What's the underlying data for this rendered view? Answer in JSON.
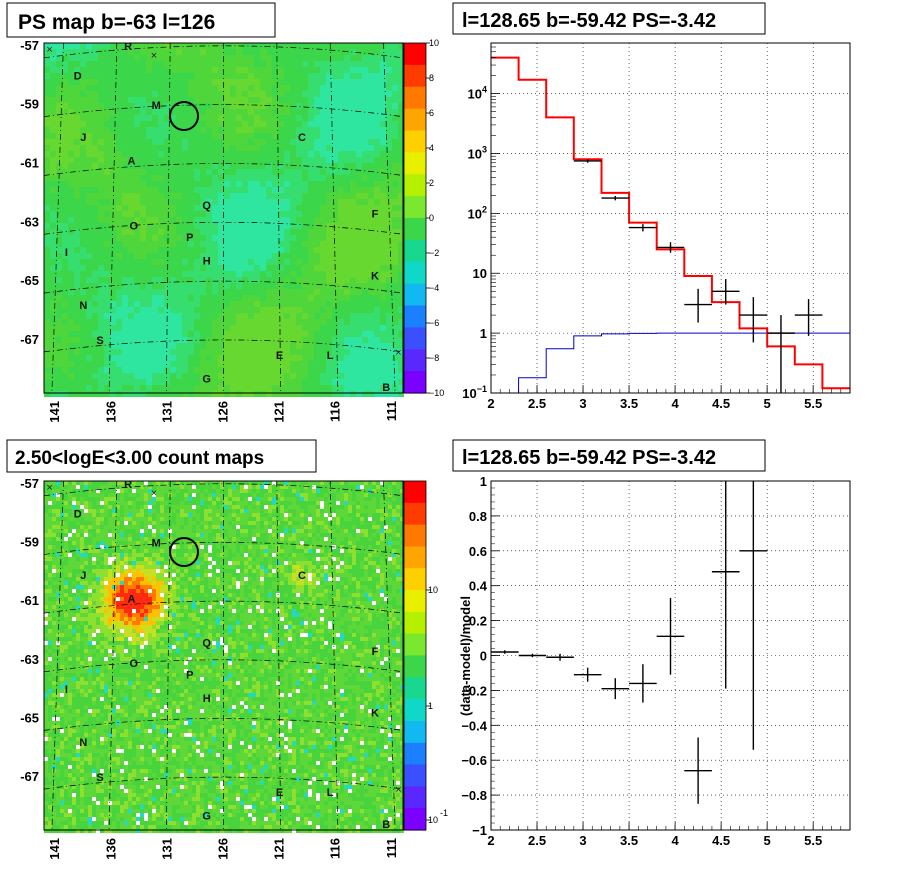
{
  "colors": {
    "map_green": "#3cd64a",
    "model_red": "#ff0000",
    "background_blue": "#0000cc",
    "frame": "#000000"
  },
  "panels": {
    "ps_map": {
      "title": "PS map b=-63 l=126",
      "b_ticks": [
        "-57",
        "-59",
        "-61",
        "-63",
        "-65",
        "-67"
      ],
      "l_ticks": [
        "141",
        "136",
        "131",
        "126",
        "121",
        "116",
        "111"
      ],
      "colorbar_ticks": [
        "10",
        "8",
        "6",
        "4",
        "2",
        "0",
        "−2",
        "−4",
        "−6",
        "−8",
        "−10"
      ],
      "colorbar_range": [
        -10,
        10
      ],
      "marker_circle": {
        "l": 128.65,
        "b": -59.42
      }
    },
    "spectrum": {
      "title": "l=128.65 b=-59.42 PS=-3.42"
    },
    "count_map": {
      "title": "2.50<logE<3.00 count maps",
      "b_ticks": [
        "-57",
        "-59",
        "-61",
        "-63",
        "-65",
        "-67"
      ],
      "l_ticks": [
        "141",
        "136",
        "131",
        "126",
        "121",
        "116",
        "111"
      ],
      "colorbar_ticks": [
        "10",
        "1",
        "10"
      ],
      "colorbar_exp": "-1"
    },
    "residual": {
      "title": "l=128.65 b=-59.42 PS=-3.42"
    }
  },
  "sources": [
    {
      "name": "R",
      "l": 134.5,
      "b": -56.8
    },
    {
      "name": "D",
      "l": 139.0,
      "b": -57.8
    },
    {
      "name": "M",
      "l": 132.0,
      "b": -58.8
    },
    {
      "name": "J",
      "l": 138.5,
      "b": -59.9
    },
    {
      "name": "C",
      "l": 119.0,
      "b": -59.9
    },
    {
      "name": "A",
      "l": 134.2,
      "b": -60.7
    },
    {
      "name": "Q",
      "l": 127.5,
      "b": -62.2
    },
    {
      "name": "F",
      "l": 112.5,
      "b": -62.5
    },
    {
      "name": "O",
      "l": 134.0,
      "b": -62.9
    },
    {
      "name": "P",
      "l": 129.0,
      "b": -63.3
    },
    {
      "name": "I",
      "l": 140.0,
      "b": -63.8
    },
    {
      "name": "H",
      "l": 127.5,
      "b": -64.1
    },
    {
      "name": "K",
      "l": 112.5,
      "b": -64.6
    },
    {
      "name": "N",
      "l": 138.5,
      "b": -65.6
    },
    {
      "name": "S",
      "l": 137.0,
      "b": -66.8
    },
    {
      "name": "E",
      "l": 121.0,
      "b": -67.3
    },
    {
      "name": "L",
      "l": 116.5,
      "b": -67.3
    },
    {
      "name": "G",
      "l": 127.5,
      "b": -68.1
    },
    {
      "name": "B",
      "l": 111.5,
      "b": -68.4
    }
  ],
  "chart_data": [
    {
      "type": "map",
      "xlim": [
        142,
        110
      ],
      "ylim": [
        -68.6,
        -56.7
      ],
      "colorbar": {
        "range": [
          -10,
          10
        ]
      }
    },
    {
      "type": "line",
      "xlim": [
        2,
        5.9
      ],
      "yscale": "log",
      "ylim": [
        0.1,
        70000
      ],
      "x_ticks": [
        "2",
        "2.5",
        "3",
        "3.5",
        "4",
        "4.5",
        "5",
        "5.5"
      ],
      "y_ticks": [
        "10^-1",
        "1",
        "10",
        "10^2",
        "10^3",
        "10^4"
      ],
      "grid": true,
      "series": [
        {
          "style": "step",
          "color": "#ff0000",
          "bin_edges": [
            2.0,
            2.3,
            2.6,
            2.9,
            3.2,
            3.5,
            3.8,
            4.1,
            4.4,
            4.7,
            5.0,
            5.3,
            5.6,
            5.9
          ],
          "values": [
            40000,
            17000,
            4000,
            800,
            220,
            70,
            25,
            9,
            3.3,
            1.2,
            0.6,
            0.3,
            0.12
          ]
        },
        {
          "style": "step",
          "color": "#0000cc",
          "bin_edges": [
            2.0,
            2.3,
            2.6,
            2.9,
            3.2,
            3.5,
            3.8,
            4.1,
            4.4,
            4.7,
            5.0,
            5.3,
            5.6,
            5.9
          ],
          "values": [
            0.05,
            0.18,
            0.55,
            0.9,
            0.97,
            0.99,
            1.0,
            1.0,
            1.0,
            1.0,
            1.0,
            1.0,
            1.0
          ]
        },
        {
          "style": "errorbar",
          "color": "#000000",
          "points": [
            {
              "x": 3.05,
              "y": 750,
              "xerr": 0.15,
              "lo": 700,
              "hi": 800
            },
            {
              "x": 3.35,
              "y": 180,
              "xerr": 0.15,
              "lo": 165,
              "hi": 195
            },
            {
              "x": 3.65,
              "y": 58,
              "xerr": 0.15,
              "lo": 50,
              "hi": 66
            },
            {
              "x": 3.95,
              "y": 27,
              "xerr": 0.15,
              "lo": 22,
              "hi": 33
            },
            {
              "x": 4.25,
              "y": 3,
              "xerr": 0.15,
              "lo": 1.5,
              "hi": 5.5
            },
            {
              "x": 4.55,
              "y": 5,
              "xerr": 0.15,
              "lo": 3,
              "hi": 8
            },
            {
              "x": 4.85,
              "y": 2,
              "xerr": 0.15,
              "lo": 0.7,
              "hi": 4
            },
            {
              "x": 5.15,
              "y": 1,
              "xerr": 0.15,
              "lo": 0.1,
              "hi": 2
            },
            {
              "x": 5.45,
              "y": 2,
              "xerr": 0.15,
              "lo": 0.9,
              "hi": 3.7
            }
          ]
        }
      ]
    },
    {
      "type": "heatmap",
      "xlim": [
        142,
        110
      ],
      "ylim": [
        -68.6,
        -56.7
      ],
      "colorbar": {
        "scale": "log",
        "range": [
          0.07,
          60
        ]
      }
    },
    {
      "type": "scatter",
      "xlim": [
        2,
        5.9
      ],
      "ylim": [
        -1,
        1
      ],
      "ylabel": "(data-model)/model",
      "x_ticks": [
        "2",
        "2.5",
        "3",
        "3.5",
        "4",
        "4.5",
        "5",
        "5.5"
      ],
      "y_ticks": [
        "−1",
        "−0.8",
        "−0.6",
        "−0.4",
        "−0.2",
        "0",
        "0.2",
        "0.4",
        "0.6",
        "0.8",
        "1"
      ],
      "grid": true,
      "points": [
        {
          "x": 2.15,
          "y": 0.02,
          "xerr": 0.15,
          "yerr": 0.01
        },
        {
          "x": 2.45,
          "y": 0.0,
          "xerr": 0.15,
          "yerr": 0.01
        },
        {
          "x": 2.75,
          "y": -0.01,
          "xerr": 0.15,
          "yerr": 0.02
        },
        {
          "x": 3.05,
          "y": -0.11,
          "xerr": 0.15,
          "yerr": 0.04
        },
        {
          "x": 3.35,
          "y": -0.19,
          "xerr": 0.15,
          "yerr": 0.06
        },
        {
          "x": 3.65,
          "y": -0.16,
          "xerr": 0.15,
          "yerr": 0.11
        },
        {
          "x": 3.95,
          "y": 0.11,
          "xerr": 0.15,
          "yerr": 0.22
        },
        {
          "x": 4.25,
          "y": -0.66,
          "xerr": 0.15,
          "yerr": 0.19
        },
        {
          "x": 4.55,
          "y": 0.48,
          "xerr": 0.15,
          "yerr": 0.67
        },
        {
          "x": 4.85,
          "y": 0.6,
          "xerr": 0.15,
          "yerr": 1.14
        }
      ]
    }
  ]
}
